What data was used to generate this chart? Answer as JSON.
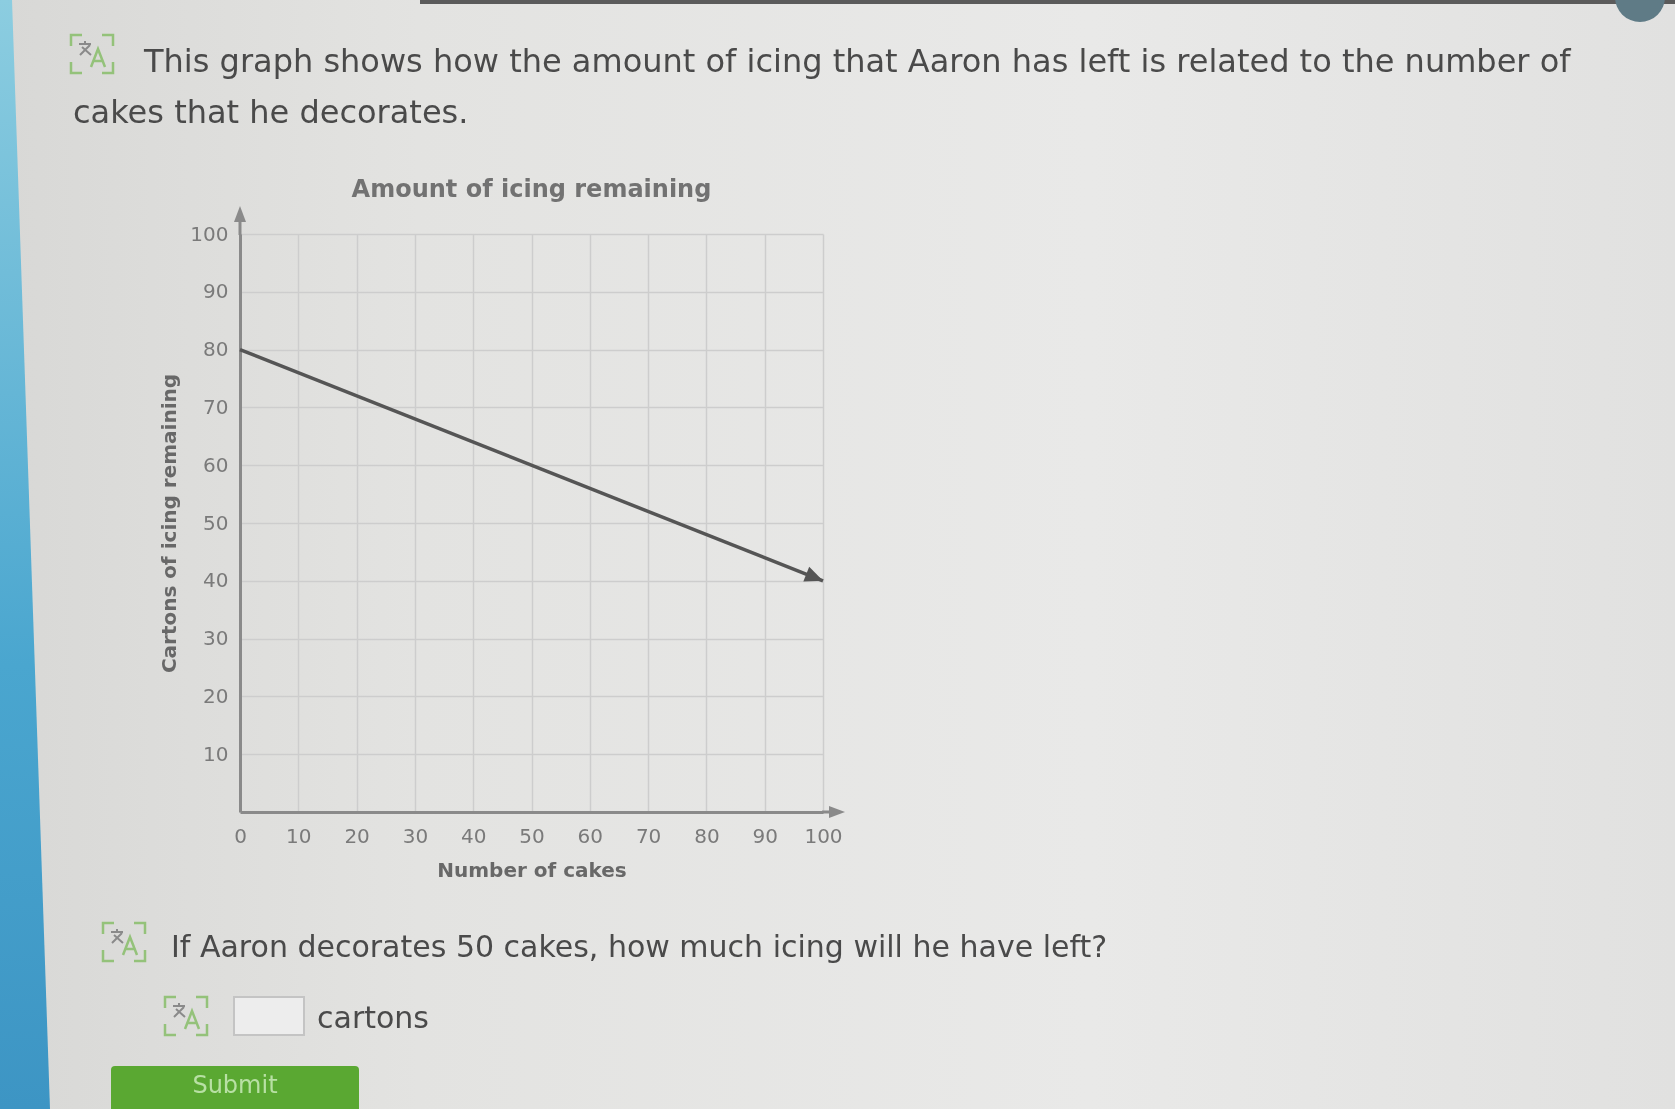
{
  "chart_data": {
    "type": "line",
    "title": "Amount of icing remaining",
    "xlabel": "Number of cakes",
    "ylabel": "Cartons of icing remaining",
    "x": [
      0,
      100
    ],
    "series": [
      {
        "color": "#555555",
        "values": [
          80,
          40
        ]
      }
    ],
    "xlim": [
      0,
      100
    ],
    "ylim": [
      0,
      100
    ],
    "xticks": [
      0,
      10,
      20,
      30,
      40,
      50,
      60,
      70,
      80,
      90,
      100
    ],
    "yticks": [
      10,
      20,
      30,
      40,
      50,
      60,
      70,
      80,
      90,
      100
    ],
    "grid": true,
    "marker": "none",
    "line_style": "solid",
    "annotations": [
      "This graph shows how the amount of icing that Aaron has left is related to the number of cakes that he decorates.",
      "If Aaron decorates 50 cakes, how much icing will he have left?",
      "cartons",
      "Submit"
    ]
  }
}
